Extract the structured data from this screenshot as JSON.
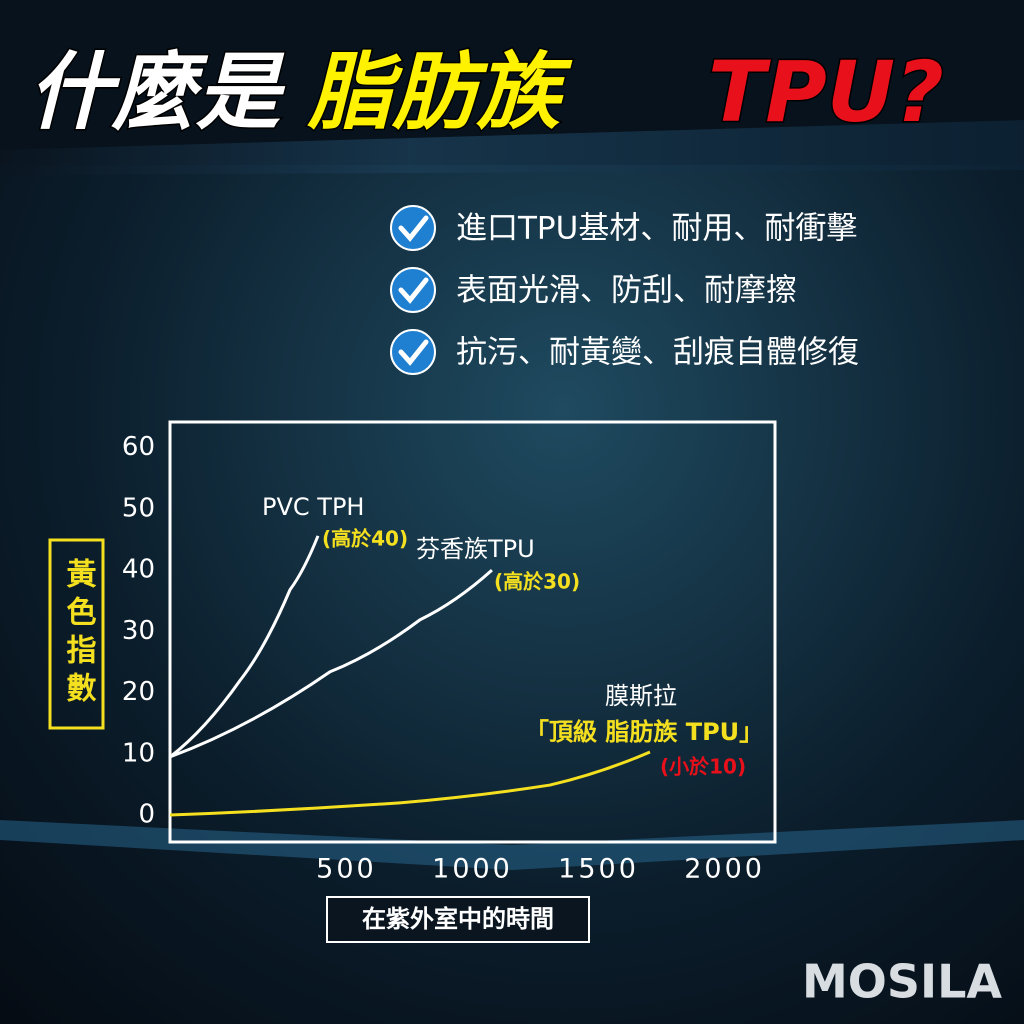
{
  "header": {
    "title_parts": [
      "什麼是",
      "脂肪族",
      "TPU?"
    ]
  },
  "features": [
    "進口TPU基材、耐用、耐衝擊",
    "表面光滑、防刮、耐摩擦",
    "抗污、耐黃變、刮痕自體修復"
  ],
  "chart_data": {
    "type": "line",
    "ylabel": "黃色指數",
    "xlabel": "在紫外室中的時間",
    "xlim": [
      -200,
      2200
    ],
    "xticks": [
      500,
      1000,
      1500,
      2000
    ],
    "ylim": [
      -4.4,
      64.2
    ],
    "yticks": [
      0,
      10,
      20,
      30,
      40,
      50,
      60
    ],
    "series": [
      {
        "name": "PVC TPH",
        "note": "(高於40)",
        "color": "#ffffff",
        "x": [
          -200,
          78,
          276,
          387
        ],
        "values": [
          9.5,
          22,
          36.8,
          45.6
        ]
      },
      {
        "name": "芬香族TPU",
        "note": "(高於30)",
        "color": "#ffffff",
        "x": [
          -200,
          435,
          792,
          1077
        ],
        "values": [
          9.5,
          23.4,
          31.9,
          40
        ]
      },
      {
        "name": "膜斯拉",
        "subtitle": "「頂級 脂肪族 TPU」",
        "note": "(小於10)",
        "color": "#f5e020",
        "x": [
          -200,
          712,
          1307,
          1704
        ],
        "values": [
          0,
          2,
          4.9,
          10.3
        ]
      }
    ]
  },
  "brand": "MOSILA"
}
